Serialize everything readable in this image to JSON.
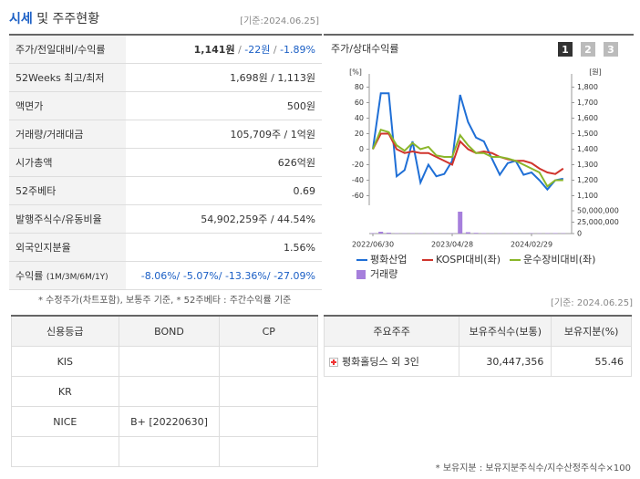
{
  "header": {
    "title": "시세",
    "subtitle": "및 주주현황",
    "date": "[기준:2024.06.25]"
  },
  "summary": {
    "rows": [
      {
        "label": "주가/전일대비/수익률",
        "value": [
          "1,141원",
          " / ",
          "-22원",
          " / ",
          "-1.89%"
        ]
      },
      {
        "label": "52Weeks 최고/최저",
        "value": "1,698원 / 1,113원"
      },
      {
        "label": "액면가",
        "value": "500원"
      },
      {
        "label": "거래량/거래대금",
        "value": "105,709주 / 1억원"
      },
      {
        "label": "시가총액",
        "value": "626억원"
      },
      {
        "label": "52주베타",
        "value": "0.69"
      },
      {
        "label": "발행주식수/유동비율",
        "value": "54,902,259주 / 44.54%"
      },
      {
        "label": "외국인지분율",
        "value": "1.56%"
      },
      {
        "label": "수익률",
        "label_note": "(1M/3M/6M/1Y)",
        "value": "-8.06%/ -5.07%/ -13.36%/ -27.09%"
      }
    ],
    "note": "* 수정주가(차트포함), 보통주 기준, * 52주베타 : 주간수익률 기준"
  },
  "chart_data": {
    "type": "line",
    "title": "주가/상대수익률",
    "tabs": [
      "1",
      "2",
      "3"
    ],
    "y_label": "[%]",
    "y2_label": "[원]",
    "categories": [
      "2022/06/30",
      null,
      null,
      null,
      null,
      null,
      null,
      null,
      null,
      null,
      "2023/04/28",
      null,
      null,
      null,
      null,
      null,
      null,
      null,
      null,
      null,
      "2024/02/29",
      null,
      null,
      null,
      null
    ],
    "series": [
      {
        "name": "평화산업",
        "color": "#1f6fd6",
        "values": [
          0,
          72,
          72,
          -35,
          -27,
          10,
          -43,
          -20,
          -35,
          -32,
          -15,
          70,
          35,
          15,
          10,
          -12,
          -33,
          -18,
          -15,
          -33,
          -30,
          -40,
          -52,
          -40,
          -38
        ]
      },
      {
        "name": "KOSPI대비(좌)",
        "color": "#d0342c",
        "values": [
          0,
          20,
          20,
          0,
          -5,
          -3,
          -5,
          -5,
          -10,
          -15,
          -20,
          10,
          0,
          -5,
          -3,
          -5,
          -10,
          -13,
          -15,
          -15,
          -18,
          -25,
          -30,
          -32,
          -25
        ]
      },
      {
        "name": "운수장비대비(좌)",
        "color": "#8ab62a",
        "values": [
          0,
          25,
          22,
          5,
          -2,
          8,
          0,
          3,
          -8,
          -10,
          -10,
          18,
          5,
          -5,
          -5,
          -10,
          -10,
          -12,
          -15,
          -20,
          -25,
          -30,
          -48,
          -40,
          -40
        ]
      }
    ],
    "ylim": [
      -70,
      90
    ],
    "yticks": [
      -60,
      -40,
      -20,
      0,
      20,
      40,
      60,
      80
    ],
    "y2lim": [
      1050,
      1850
    ],
    "y2ticks": [
      {
        "value": 1100,
        "label": "1,100"
      },
      {
        "value": 1200,
        "label": "1,200"
      },
      {
        "value": 1300,
        "label": "1,300"
      },
      {
        "value": 1400,
        "label": "1,400"
      },
      {
        "value": 1500,
        "label": "1,500"
      },
      {
        "value": 1600,
        "label": "1,600"
      },
      {
        "value": 1700,
        "label": "1,700"
      },
      {
        "value": 1800,
        "label": "1,800"
      }
    ],
    "volume": {
      "name": "거래량",
      "color": "#a67fdc",
      "values": [
        1000000,
        4000000,
        2000000,
        800000,
        600000,
        900000,
        700000,
        500000,
        600000,
        500000,
        800000,
        48000000,
        3000000,
        1500000,
        900000,
        700000,
        600000,
        500000,
        600000,
        500000,
        700000,
        600000,
        800000,
        1000000,
        700000
      ],
      "ylim": [
        0,
        50000000
      ],
      "yticks": [
        0,
        {
          "value": 25000000,
          "label": "25,000,000"
        },
        {
          "value": 50000000,
          "label": "50,000,000"
        }
      ]
    },
    "grid": false
  },
  "rating": {
    "header": [
      "신용등급",
      "BOND",
      "CP"
    ],
    "rows": [
      [
        "KIS",
        null,
        null
      ],
      [
        "KR",
        null,
        null
      ],
      [
        "NICE",
        "B+  [20220630]",
        null
      ],
      [
        null,
        null,
        null
      ]
    ]
  },
  "holders": {
    "date": "[기준: 2024.06.25]",
    "header": [
      "주요주주",
      "보유주식수(보통)",
      "보유지분(%)"
    ],
    "rows": [
      [
        "평화홀딩스 외 3인",
        "30,447,356",
        "55.46"
      ]
    ],
    "note": "* 보유지분 : 보유지분주식수/지수산정주식수×100"
  }
}
